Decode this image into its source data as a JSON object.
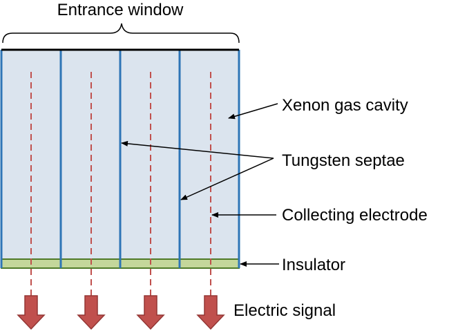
{
  "labels": {
    "entrance_window": "Entrance window",
    "xenon_gas_cavity": "Xenon gas cavity",
    "tungsten_septae": "Tungsten septae",
    "collecting_electrode": "Collecting electrode",
    "insulator": "Insulator",
    "electric_signal": "Electric signal"
  },
  "colors": {
    "cavity_fill": "#dbe4ee",
    "septa_line": "#2e75b6",
    "electrode_dash": "#c0504d",
    "insulator_fill": "#c4d79b",
    "insulator_border": "#4f7a28",
    "signal_arrow_fill": "#c0504d",
    "signal_arrow_border": "#943634",
    "window_line": "#000000"
  },
  "detector": {
    "cell_count": 4
  },
  "icons": [
    "pointer-arrow",
    "signal-arrow"
  ]
}
